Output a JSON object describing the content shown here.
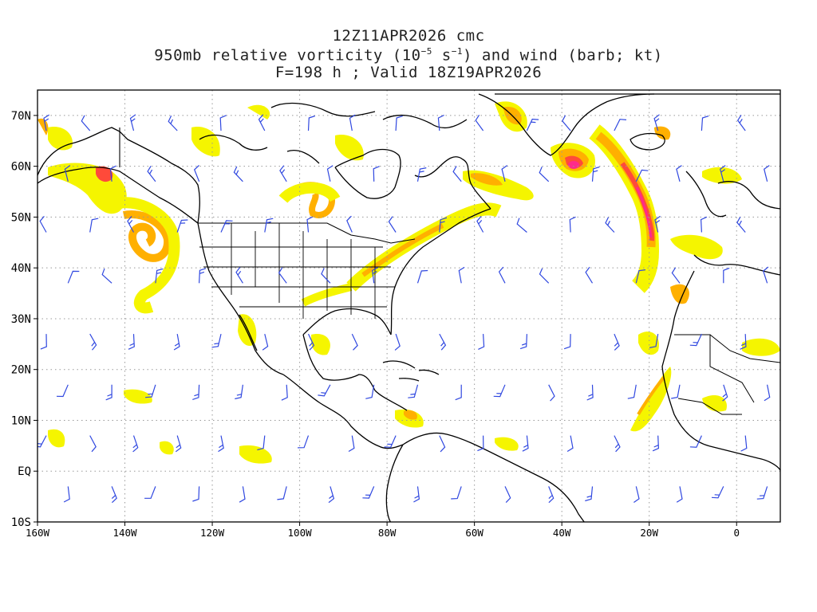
{
  "title": {
    "line1": "12Z11APR2026 cmc",
    "line2_pre": "950mb relative vorticity (10",
    "line2_exp1": "−5",
    "line2_mid": " s",
    "line2_exp2": "−1",
    "line2_post": ") and wind (barb; kt)",
    "line3": "F=198 h ; Valid 18Z19APR2026"
  },
  "map": {
    "lon_range": [
      -160,
      10
    ],
    "lat_range": [
      -10,
      75
    ],
    "lat_ticks": [
      {
        "lat": 70,
        "label": "70N"
      },
      {
        "lat": 60,
        "label": "60N"
      },
      {
        "lat": 50,
        "label": "50N"
      },
      {
        "lat": 40,
        "label": "40N"
      },
      {
        "lat": 30,
        "label": "30N"
      },
      {
        "lat": 20,
        "label": "20N"
      },
      {
        "lat": 10,
        "label": "10N"
      },
      {
        "lat": 0,
        "label": "EQ"
      },
      {
        "lat": -10,
        "label": "10S"
      }
    ],
    "lon_ticks": [
      {
        "lon": -160,
        "label": "160W"
      },
      {
        "lon": -140,
        "label": "140W"
      },
      {
        "lon": -120,
        "label": "120W"
      },
      {
        "lon": -100,
        "label": "100W"
      },
      {
        "lon": -80,
        "label": "80W"
      },
      {
        "lon": -60,
        "label": "60W"
      },
      {
        "lon": -40,
        "label": "40W"
      },
      {
        "lon": -20,
        "label": "20W"
      },
      {
        "lon": 0,
        "label": "0"
      }
    ],
    "colors": {
      "vort_low": "#f5f500",
      "vort_mid": "#ffb000",
      "vort_high": "#ff4a3a",
      "vort_max": "#ff2a8a",
      "barb": "#3048e0",
      "coast": "#000000",
      "grid": "#999999"
    }
  }
}
